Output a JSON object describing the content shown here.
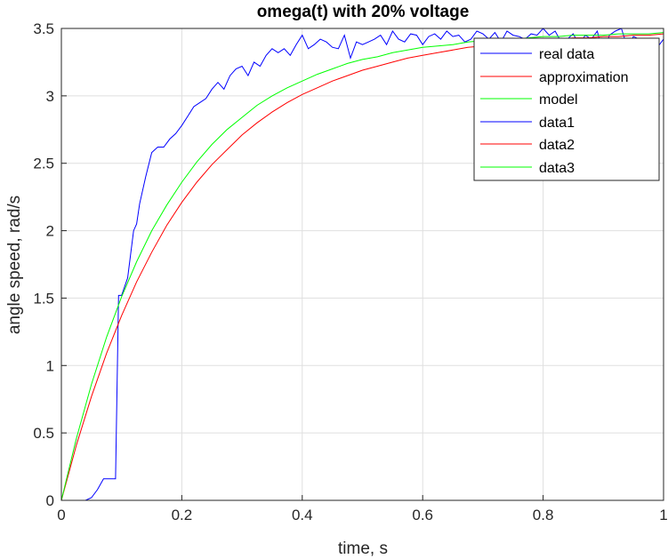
{
  "chart_data": {
    "type": "line",
    "title": "omega(t) with 20% voltage",
    "xlabel": "time, s",
    "ylabel": "angle speed, rad/s",
    "xlim": [
      0,
      1
    ],
    "ylim": [
      0,
      3.5
    ],
    "xticks": [
      0,
      0.2,
      0.4,
      0.6,
      0.8,
      1
    ],
    "xtick_labels": [
      "0",
      "0.2",
      "0.4",
      "0.6",
      "0.8",
      "1"
    ],
    "yticks": [
      0,
      0.5,
      1,
      1.5,
      2,
      2.5,
      3,
      3.5
    ],
    "ytick_labels": [
      "0",
      "0.5",
      "1",
      "1.5",
      "2",
      "2.5",
      "3",
      "3.5"
    ],
    "grid": true,
    "legend_position": "top-right",
    "legend": [
      "real data",
      "approximation",
      "model",
      "data1",
      "data2",
      "data3"
    ],
    "legend_colors": [
      "#0000ff",
      "#ff0000",
      "#00ff00",
      "#0000ff",
      "#ff0000",
      "#00ff00"
    ],
    "series": [
      {
        "name": "real data",
        "color": "#0000ff",
        "x": [
          0,
          0.04,
          0.05,
          0.06,
          0.07,
          0.08,
          0.09,
          0.095,
          0.1,
          0.11,
          0.12,
          0.125,
          0.13,
          0.14,
          0.15,
          0.16,
          0.17,
          0.18,
          0.19,
          0.2,
          0.21,
          0.22,
          0.23,
          0.24,
          0.25,
          0.26,
          0.27,
          0.28,
          0.29,
          0.3,
          0.31,
          0.32,
          0.33,
          0.34,
          0.35,
          0.36,
          0.37,
          0.38,
          0.39,
          0.4,
          0.41,
          0.42,
          0.43,
          0.44,
          0.45,
          0.46,
          0.47,
          0.48,
          0.49,
          0.5,
          0.51,
          0.52,
          0.53,
          0.54,
          0.55,
          0.56,
          0.57,
          0.58,
          0.59,
          0.6,
          0.61,
          0.62,
          0.63,
          0.64,
          0.65,
          0.66,
          0.67,
          0.68,
          0.69,
          0.7,
          0.71,
          0.72,
          0.73,
          0.74,
          0.75,
          0.76,
          0.77,
          0.78,
          0.79,
          0.8,
          0.81,
          0.82,
          0.83,
          0.84,
          0.85,
          0.86,
          0.87,
          0.88,
          0.89,
          0.9,
          0.91,
          0.92,
          0.93,
          0.94,
          0.95,
          0.96,
          0.97,
          0.98,
          0.99,
          1.0
        ],
        "values": [
          0,
          0,
          0.02,
          0.08,
          0.16,
          0.16,
          0.16,
          1.52,
          1.52,
          1.65,
          2.0,
          2.05,
          2.2,
          2.4,
          2.58,
          2.62,
          2.62,
          2.68,
          2.72,
          2.78,
          2.85,
          2.92,
          2.95,
          2.98,
          3.05,
          3.1,
          3.05,
          3.15,
          3.2,
          3.22,
          3.15,
          3.25,
          3.22,
          3.3,
          3.35,
          3.32,
          3.35,
          3.3,
          3.38,
          3.45,
          3.35,
          3.38,
          3.42,
          3.4,
          3.36,
          3.35,
          3.45,
          3.28,
          3.4,
          3.38,
          3.4,
          3.42,
          3.45,
          3.38,
          3.48,
          3.42,
          3.4,
          3.46,
          3.45,
          3.38,
          3.44,
          3.46,
          3.42,
          3.48,
          3.44,
          3.45,
          3.4,
          3.42,
          3.48,
          3.46,
          3.42,
          3.47,
          3.4,
          3.48,
          3.45,
          3.44,
          3.42,
          3.46,
          3.45,
          3.5,
          3.45,
          3.48,
          3.4,
          3.42,
          3.46,
          3.38,
          3.45,
          3.42,
          3.48,
          3.3,
          3.45,
          3.48,
          3.5,
          3.36,
          3.44,
          3.42,
          3.3,
          3.32,
          3.36,
          3.42
        ]
      },
      {
        "name": "approximation",
        "color": "#ff0000",
        "x": [
          0,
          0.025,
          0.05,
          0.075,
          0.1,
          0.125,
          0.15,
          0.175,
          0.2,
          0.225,
          0.25,
          0.275,
          0.3,
          0.325,
          0.35,
          0.375,
          0.4,
          0.425,
          0.45,
          0.475,
          0.5,
          0.525,
          0.55,
          0.575,
          0.6,
          0.625,
          0.65,
          0.675,
          0.7,
          0.725,
          0.75,
          0.775,
          0.8,
          0.825,
          0.85,
          0.875,
          0.9,
          0.925,
          0.95,
          0.975,
          1.0
        ],
        "values": [
          0,
          0.41,
          0.77,
          1.09,
          1.37,
          1.62,
          1.84,
          2.04,
          2.21,
          2.36,
          2.49,
          2.6,
          2.71,
          2.8,
          2.88,
          2.95,
          3.01,
          3.06,
          3.11,
          3.15,
          3.19,
          3.22,
          3.25,
          3.28,
          3.3,
          3.32,
          3.34,
          3.36,
          3.37,
          3.38,
          3.39,
          3.4,
          3.41,
          3.42,
          3.43,
          3.43,
          3.44,
          3.44,
          3.45,
          3.45,
          3.46
        ]
      },
      {
        "name": "model",
        "color": "#00ff00",
        "x": [
          0,
          0.025,
          0.05,
          0.075,
          0.1,
          0.125,
          0.15,
          0.175,
          0.2,
          0.225,
          0.25,
          0.275,
          0.3,
          0.325,
          0.35,
          0.375,
          0.4,
          0.425,
          0.45,
          0.475,
          0.5,
          0.525,
          0.55,
          0.575,
          0.6,
          0.625,
          0.65,
          0.675,
          0.7,
          0.725,
          0.75,
          0.775,
          0.8,
          0.825,
          0.85,
          0.875,
          0.9,
          0.925,
          0.95,
          0.975,
          1.0
        ],
        "values": [
          0,
          0.46,
          0.86,
          1.21,
          1.51,
          1.77,
          2.0,
          2.19,
          2.36,
          2.51,
          2.64,
          2.75,
          2.84,
          2.93,
          3.0,
          3.06,
          3.11,
          3.16,
          3.2,
          3.24,
          3.27,
          3.29,
          3.32,
          3.34,
          3.36,
          3.37,
          3.38,
          3.4,
          3.41,
          3.42,
          3.42,
          3.43,
          3.44,
          3.44,
          3.45,
          3.45,
          3.45,
          3.46,
          3.46,
          3.46,
          3.47
        ]
      }
    ]
  }
}
